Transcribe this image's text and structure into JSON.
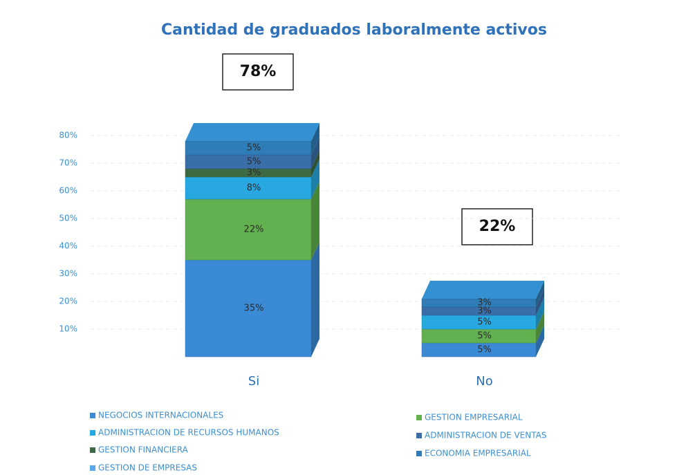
{
  "chart_data": {
    "type": "bar3d_stacked",
    "title": "Cantidad de graduados laboralmente activos",
    "categories": [
      "Si",
      "No"
    ],
    "annotations": [
      "78%",
      "22%"
    ],
    "series": [
      {
        "name": "NEGOCIOS INTERNACIONALES",
        "color": "#3a8ad6",
        "values": [
          35,
          5
        ],
        "value_labels": [
          "35%",
          "5%"
        ]
      },
      {
        "name": "GESTION EMPRESARIAL",
        "color": "#62b04f",
        "values": [
          22,
          5
        ],
        "value_labels": [
          "22%",
          "5%"
        ]
      },
      {
        "name": "ADMINISTRACION DE RECURSOS HUMANOS",
        "color": "#27a8e0",
        "values": [
          8,
          5
        ],
        "value_labels": [
          "8%",
          "5%"
        ]
      },
      {
        "name": "GESTION FINANCIERA",
        "color": "#3e6a43",
        "values": [
          3,
          null
        ],
        "value_labels": [
          "3%",
          null
        ]
      },
      {
        "name": "ADMINISTRACION DE VENTAS",
        "color": "#3a6ea8",
        "values": [
          5,
          3
        ],
        "value_labels": [
          "5%",
          "3%"
        ]
      },
      {
        "name": "ECONOMIA EMPRESARIAL",
        "color": "#2e7db6",
        "values": [
          5,
          3
        ],
        "value_labels": [
          "5%",
          "3%"
        ]
      },
      {
        "name": "GESTION DE EMPRESAS",
        "color": "#5aa8e4",
        "values": [
          null,
          null
        ],
        "value_labels": [
          null,
          null
        ]
      }
    ],
    "ylim": [
      0,
      90
    ],
    "yticks": [
      {
        "value": 10,
        "label": "10%"
      },
      {
        "value": 20,
        "label": "20%"
      },
      {
        "value": 30,
        "label": "30%"
      },
      {
        "value": 40,
        "label": "40%"
      },
      {
        "value": 50,
        "label": "50%"
      },
      {
        "value": 60,
        "label": "60%"
      },
      {
        "value": 70,
        "label": "70%"
      },
      {
        "value": 80,
        "label": "80%"
      }
    ],
    "grid": true
  }
}
